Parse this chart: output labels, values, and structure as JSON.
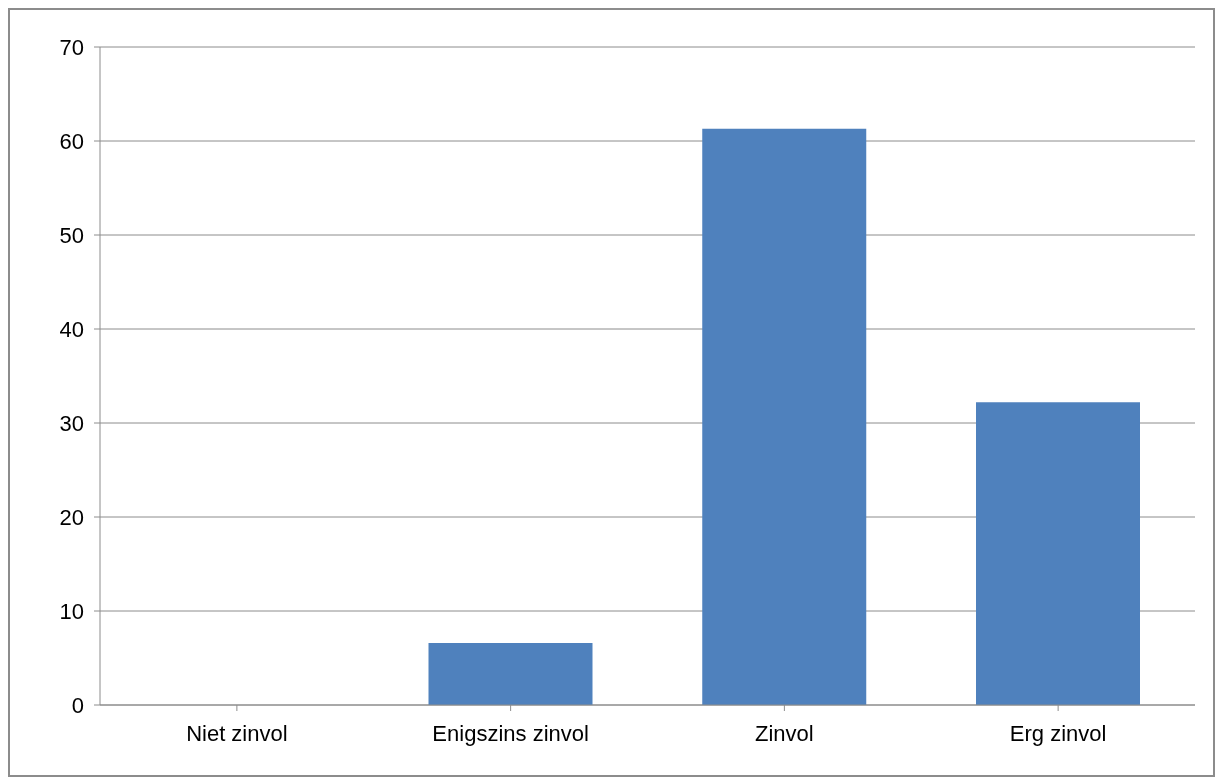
{
  "chart_data": {
    "type": "bar",
    "categories": [
      "Niet zinvol",
      "Enigszins zinvol",
      "Zinvol",
      "Erg zinvol"
    ],
    "values": [
      0,
      6.6,
      61.3,
      32.2
    ],
    "color": "#4f81bd",
    "ylim": [
      0,
      70
    ],
    "yticks": [
      0,
      10,
      20,
      30,
      40,
      50,
      60,
      70
    ],
    "grid": "y"
  }
}
